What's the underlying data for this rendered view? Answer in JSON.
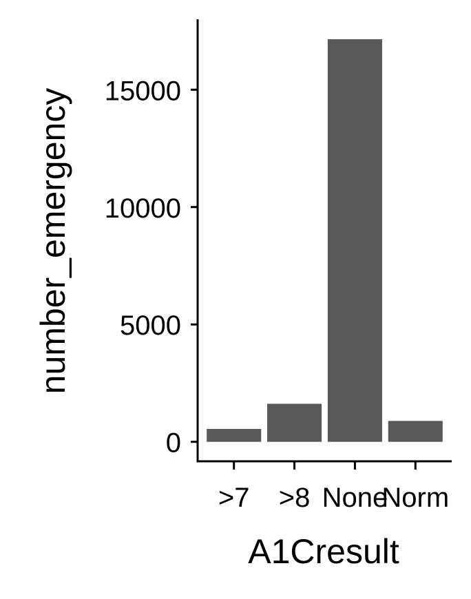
{
  "chart_data": {
    "type": "bar",
    "categories": [
      ">7",
      ">8",
      "None",
      "Norm"
    ],
    "values": [
      550,
      1620,
      17150,
      890
    ],
    "xlabel": "A1Cresult",
    "ylabel": "number_emergency",
    "yticks": [
      0,
      5000,
      10000,
      15000
    ],
    "ylim": [
      -830,
      18000
    ],
    "grid": false,
    "legend": "none",
    "colors": {
      "bar": "#595959",
      "axis": "#000000",
      "text": "#000000",
      "background": "#ffffff"
    }
  }
}
